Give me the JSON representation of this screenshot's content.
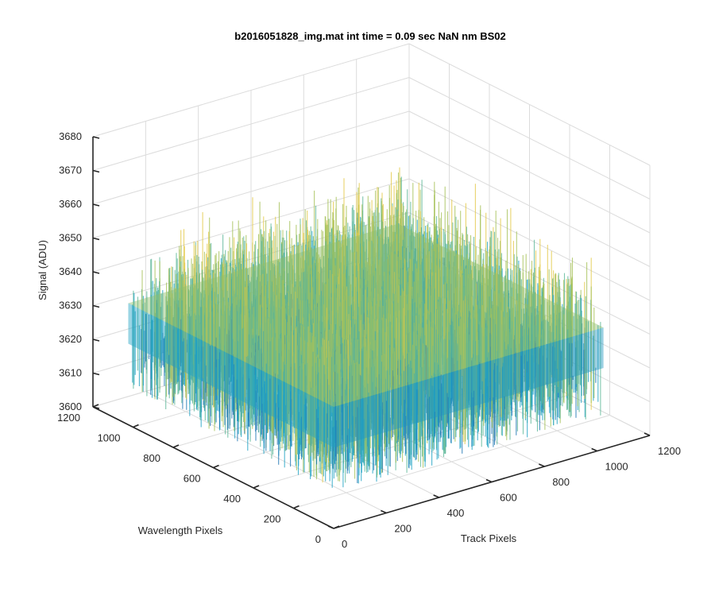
{
  "chart_data": {
    "type": "surface",
    "title": "b2016051828_img.mat int time = 0.09 sec  NaN nm BS02",
    "xlabel": "Track Pixels",
    "ylabel": "Wavelength Pixels",
    "zlabel": "Signal (ADU)",
    "x_ticks": [
      "0",
      "200",
      "400",
      "600",
      "800",
      "1000",
      "1200"
    ],
    "y_ticks": [
      "0",
      "200",
      "400",
      "600",
      "800",
      "1000",
      "1200"
    ],
    "z_ticks": [
      "3600",
      "3610",
      "3620",
      "3630",
      "3640",
      "3650",
      "3660",
      "3670",
      "3680"
    ],
    "xlim": [
      0,
      1200
    ],
    "ylim": [
      0,
      1200
    ],
    "zlim": [
      3600,
      3680
    ],
    "surface_x_range": [
      0,
      1024
    ],
    "surface_y_range": [
      0,
      1024
    ],
    "mean_signal": 3630,
    "noise_range": [
      3610,
      3670
    ],
    "colormap": [
      "#1f77b4",
      "#21a2c4",
      "#5fb89a",
      "#a6c25a",
      "#e3c94a"
    ],
    "grid": true
  }
}
